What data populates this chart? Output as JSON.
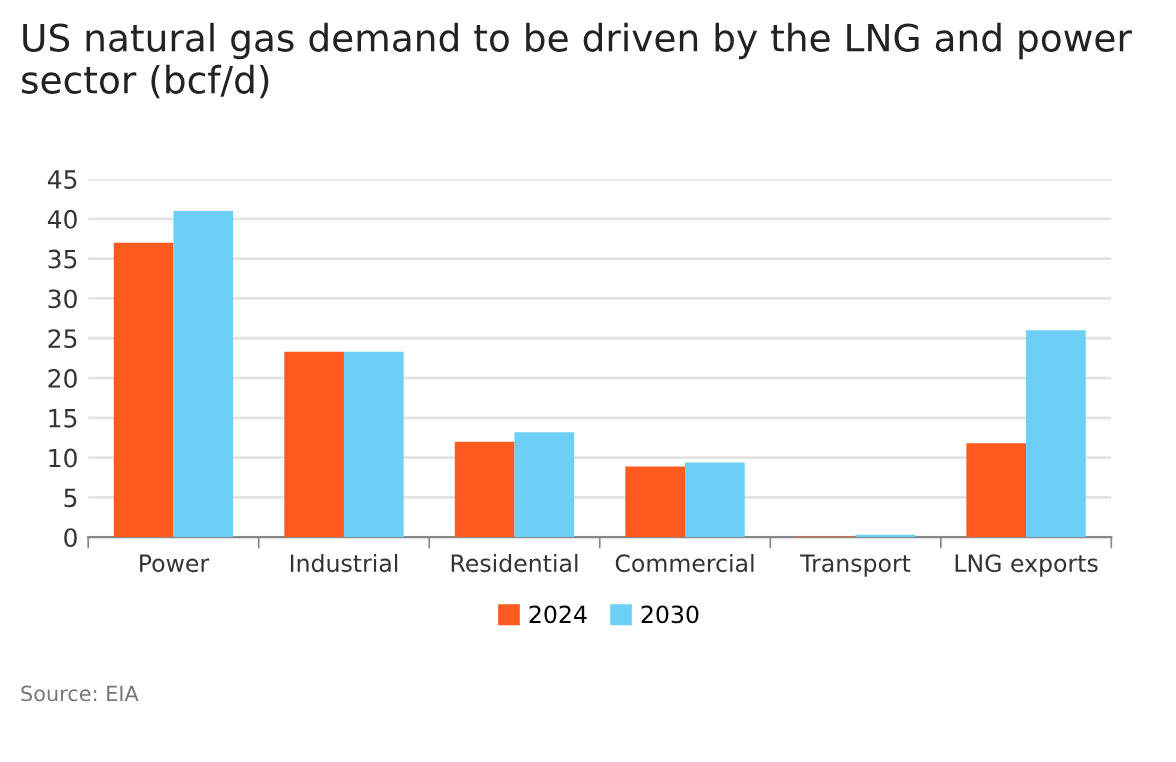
{
  "chart_data": {
    "type": "bar",
    "title": "US natural gas demand to be driven by the LNG and power sector (bcf/d)",
    "categories": [
      "Power",
      "Industrial",
      "Residential",
      "Commercial",
      "Transport",
      "LNG exports"
    ],
    "series": [
      {
        "name": "2024",
        "color": "#ff5a1e",
        "values": [
          37,
          23.3,
          12,
          8.9,
          0.1,
          11.8
        ]
      },
      {
        "name": "2030",
        "color": "#6ecff6",
        "values": [
          41,
          23.3,
          13.2,
          9.4,
          0.3,
          26
        ]
      }
    ],
    "ylim": [
      0,
      45
    ],
    "yticks": [
      0,
      5,
      10,
      15,
      20,
      25,
      30,
      35,
      40,
      45
    ],
    "grid": "y",
    "legend": "bottom",
    "annotations": [
      "Source: EIA"
    ]
  }
}
